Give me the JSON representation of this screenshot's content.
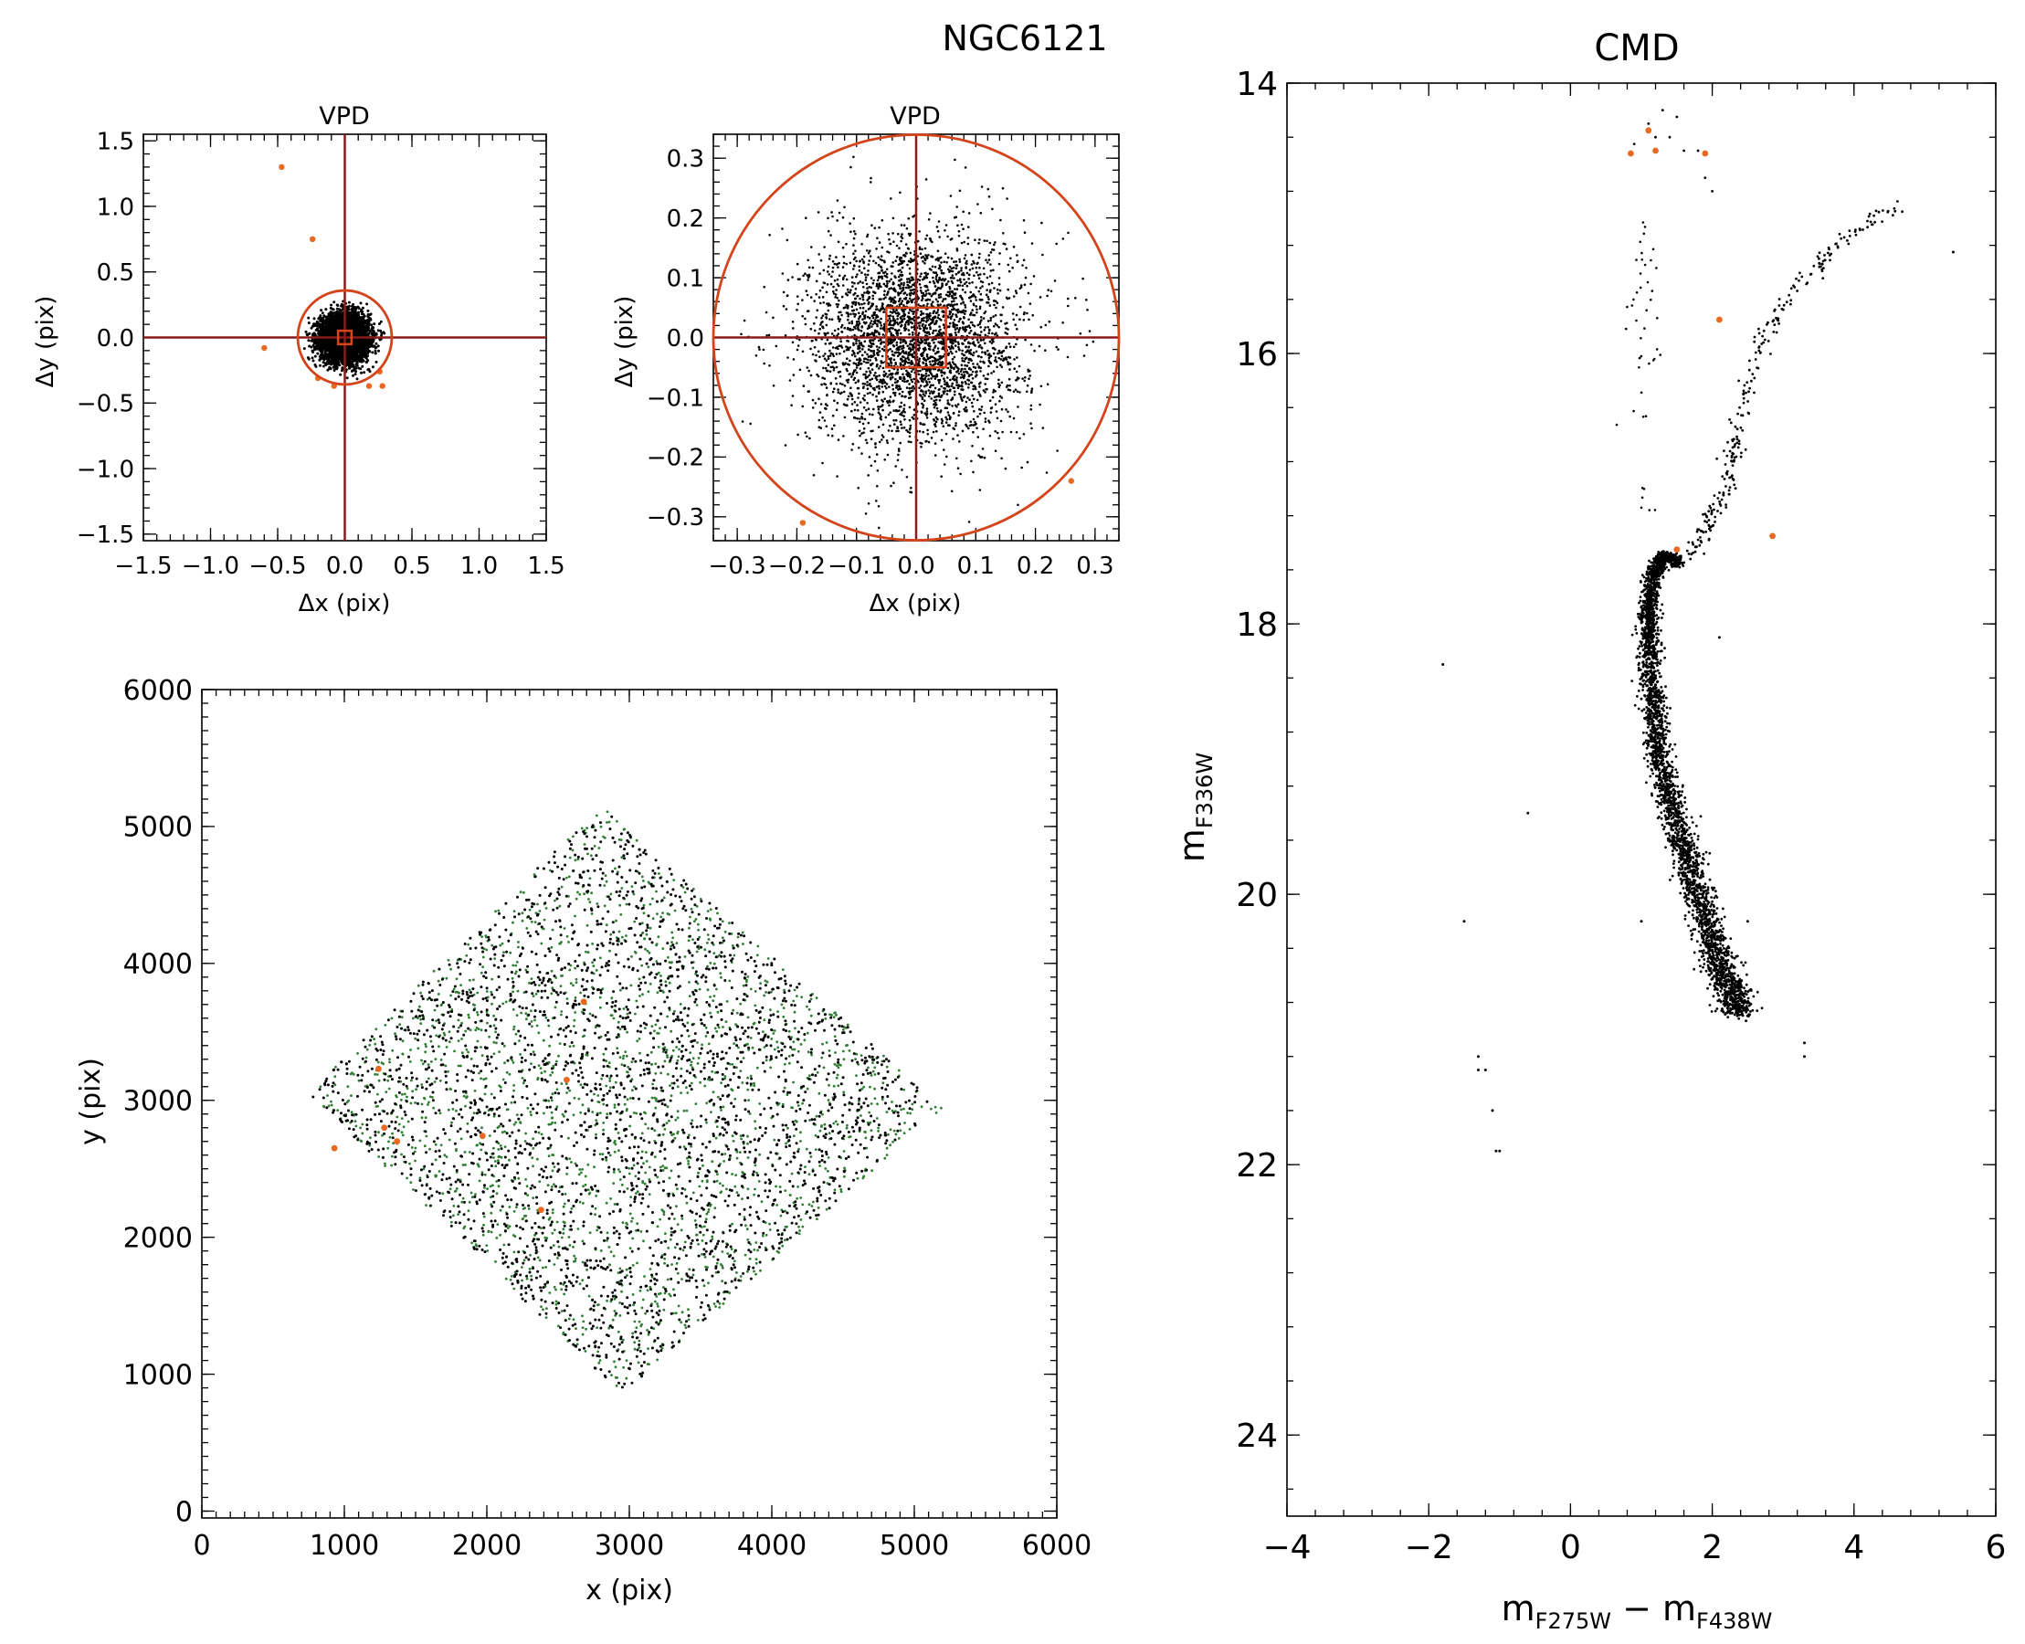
{
  "figure": {
    "title": "NGC6121"
  },
  "colors": {
    "axes": "#000000",
    "points": "#000000",
    "field_points": "#2e7d32",
    "rejected_points": "#e8691f",
    "circle": "#d4441a",
    "crosshair": "#8b1a1a"
  },
  "chart_data": [
    {
      "id": "vpd-wide",
      "type": "scatter",
      "title": "VPD",
      "xlabel": "Δx (pix)",
      "ylabel": "Δy (pix)",
      "xlim": [
        -1.5,
        1.5
      ],
      "ylim": [
        -1.55,
        1.55
      ],
      "xticks": [
        "−1.5",
        "−1.0",
        "−0.5",
        "0.0",
        "0.5",
        "1.0",
        "1.5"
      ],
      "yticks": [
        "−1.5",
        "−1.0",
        "−0.5",
        "0.0",
        "0.5",
        "1.0",
        "1.5"
      ],
      "members": {
        "n": 4500,
        "sigma": 0.09,
        "rmax": 0.33
      },
      "rejected": [
        [
          -0.47,
          1.3
        ],
        [
          -0.24,
          0.75
        ],
        [
          -0.6,
          -0.08
        ],
        [
          -0.2,
          -0.31
        ],
        [
          -0.08,
          -0.37
        ],
        [
          0.18,
          -0.37
        ],
        [
          0.28,
          -0.37
        ],
        [
          0.26,
          -0.26
        ]
      ],
      "circle_radius": 0.35,
      "box_halfwidth": 0.05,
      "crosshair": [
        0,
        0
      ]
    },
    {
      "id": "vpd-zoom",
      "type": "scatter",
      "title": "VPD",
      "xlabel": "Δx (pix)",
      "ylabel": "Δy (pix)",
      "xlim": [
        -0.34,
        0.34
      ],
      "ylim": [
        -0.34,
        0.34
      ],
      "xticks": [
        "−0.3",
        "−0.2",
        "−0.1",
        "0.0",
        "0.1",
        "0.2",
        "0.3"
      ],
      "yticks": [
        "−0.3",
        "−0.2",
        "−0.1",
        "0.0",
        "0.1",
        "0.2",
        "0.3"
      ],
      "members": {
        "n": 3200,
        "sigma": 0.09,
        "rmax": 0.34
      },
      "rejected": [
        [
          -0.19,
          -0.31
        ],
        [
          0.26,
          -0.24
        ]
      ],
      "circle_radius": 0.34,
      "box_halfwidth": 0.05,
      "crosshair": [
        0,
        0
      ]
    },
    {
      "id": "xy-map",
      "type": "scatter",
      "title": "",
      "xlabel": "x (pix)",
      "ylabel": "y (pix)",
      "xlim": [
        0,
        6000
      ],
      "ylim": [
        -50,
        6000
      ],
      "xticks": [
        "0",
        "1000",
        "2000",
        "3000",
        "4000",
        "5000",
        "6000"
      ],
      "yticks": [
        "0",
        "1000",
        "2000",
        "3000",
        "4000",
        "5000",
        "6000"
      ],
      "field_corners": [
        [
          2800,
          5150
        ],
        [
          5200,
          2950
        ],
        [
          2950,
          850
        ],
        [
          750,
          3050
        ]
      ],
      "n_black": 2600,
      "n_green": 1900,
      "rejected": [
        [
          2680,
          3720
        ],
        [
          1240,
          3230
        ],
        [
          2560,
          3150
        ],
        [
          1280,
          2800
        ],
        [
          1370,
          2700
        ],
        [
          1970,
          2740
        ],
        [
          930,
          2650
        ],
        [
          2380,
          2200
        ]
      ]
    },
    {
      "id": "cmd",
      "type": "scatter",
      "title": "CMD",
      "xlabel": "m_F275W − m_F438W",
      "ylabel": "m_F336W",
      "xlim": [
        -4,
        6
      ],
      "ylim": [
        24.6,
        14
      ],
      "xticks": [
        "−4",
        "−2",
        "0",
        "2",
        "4",
        "6"
      ],
      "yticks": [
        "14",
        "16",
        "18",
        "20",
        "22",
        "24"
      ],
      "sequence_ridge": [
        [
          1.55,
          17.55
        ],
        [
          1.3,
          17.5
        ],
        [
          1.15,
          17.65
        ],
        [
          1.1,
          18.0
        ],
        [
          1.15,
          18.5
        ],
        [
          1.25,
          19.0
        ],
        [
          1.5,
          19.5
        ],
        [
          1.8,
          20.0
        ],
        [
          2.1,
          20.5
        ],
        [
          2.4,
          20.9
        ]
      ],
      "rgb_ridge": [
        [
          1.7,
          17.5
        ],
        [
          2.2,
          17.0
        ],
        [
          2.4,
          16.4
        ],
        [
          2.7,
          15.9
        ],
        [
          3.2,
          15.5
        ],
        [
          4.0,
          15.1
        ],
        [
          4.6,
          14.9
        ]
      ],
      "outliers": [
        [
          -1.8,
          18.3
        ],
        [
          -1.5,
          20.2
        ],
        [
          -0.6,
          19.4
        ],
        [
          -1.3,
          21.3
        ],
        [
          -1.3,
          21.2
        ],
        [
          -1.2,
          21.3
        ],
        [
          -1.1,
          21.6
        ],
        [
          -1.05,
          21.9
        ],
        [
          -1.0,
          21.9
        ],
        [
          1.0,
          20.2
        ],
        [
          3.3,
          21.1
        ],
        [
          3.3,
          21.2
        ],
        [
          2.5,
          20.2
        ],
        [
          2.1,
          18.1
        ],
        [
          5.4,
          15.25
        ]
      ],
      "hb_points": [
        [
          1.1,
          14.3
        ],
        [
          1.2,
          14.4
        ],
        [
          1.4,
          14.4
        ],
        [
          1.6,
          14.5
        ],
        [
          1.8,
          14.5
        ],
        [
          1.9,
          14.7
        ],
        [
          2.0,
          14.8
        ],
        [
          1.3,
          14.2
        ],
        [
          1.5,
          14.25
        ],
        [
          0.9,
          14.45
        ]
      ],
      "rejected": [
        [
          0.85,
          14.52
        ],
        [
          1.1,
          14.35
        ],
        [
          1.2,
          14.5
        ],
        [
          1.9,
          14.52
        ],
        [
          2.1,
          15.75
        ],
        [
          1.5,
          17.45
        ],
        [
          2.85,
          17.35
        ]
      ]
    }
  ]
}
